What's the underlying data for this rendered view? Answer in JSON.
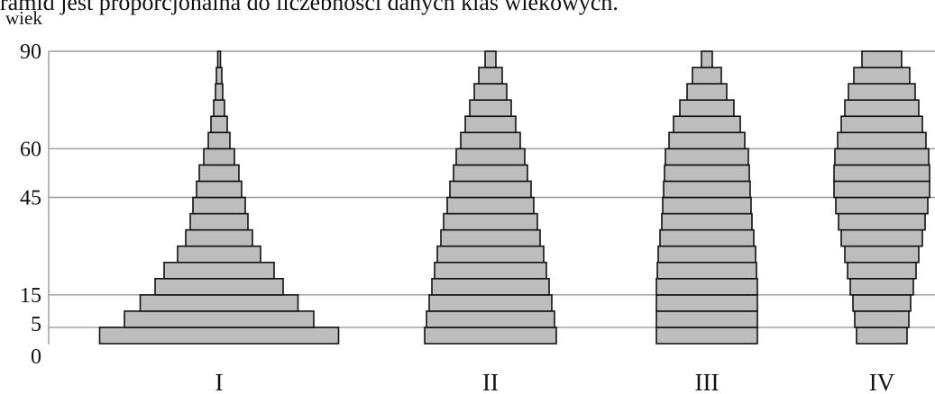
{
  "caption": "ramid jest proporcjonalna do liczebności danych klas wiekowych.",
  "chart_data": {
    "type": "bar",
    "orientation": "horizontal",
    "ylabel": "wiek",
    "y_ticks": [
      0,
      5,
      15,
      45,
      60,
      90
    ],
    "ylim": [
      0,
      90
    ],
    "grid": true,
    "age_classes": [
      "0-5",
      "5-10",
      "10-15",
      "15-20",
      "20-25",
      "25-30",
      "30-35",
      "35-40",
      "40-45",
      "45-50",
      "50-55",
      "55-60",
      "60-65",
      "65-70",
      "70-75",
      "75-80",
      "80-85",
      "85-90"
    ],
    "series": [
      {
        "label": "I",
        "values": [
          265,
          210,
          175,
          142,
          122,
          92,
          74,
          64,
          58,
          50,
          44,
          34,
          24,
          18,
          12,
          8,
          6,
          3
        ]
      },
      {
        "label": "II",
        "values": [
          146,
          142,
          136,
          130,
          124,
          118,
          110,
          104,
          96,
          90,
          82,
          76,
          66,
          56,
          46,
          36,
          26,
          12
        ]
      },
      {
        "label": "III",
        "values": [
          112,
          112,
          112,
          112,
          110,
          108,
          104,
          100,
          98,
          96,
          94,
          92,
          84,
          74,
          60,
          44,
          32,
          12
        ]
      },
      {
        "label": "IV",
        "values": [
          56,
          60,
          64,
          70,
          76,
          82,
          90,
          96,
          102,
          106,
          106,
          104,
          98,
          90,
          82,
          74,
          62,
          44
        ]
      }
    ]
  }
}
